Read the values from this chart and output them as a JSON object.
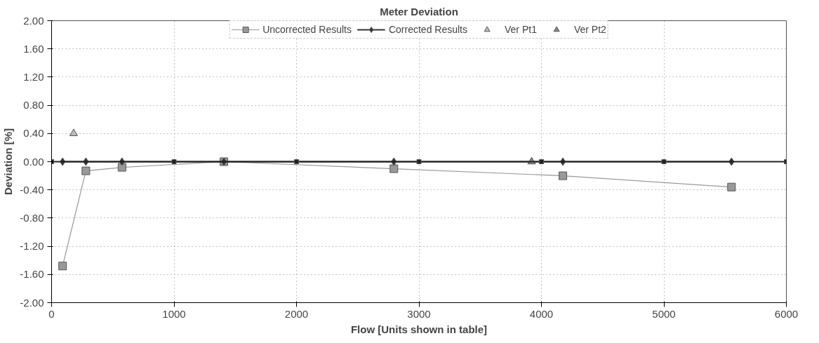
{
  "chart_data": {
    "type": "line",
    "title": "Meter Deviation",
    "xlabel": "Flow [Units shown in table]",
    "ylabel": "Deviation [%]",
    "xlim": [
      0,
      6000
    ],
    "xticks": [
      0,
      1000,
      2000,
      3000,
      4000,
      5000,
      6000
    ],
    "ylim": [
      -2.0,
      2.0
    ],
    "yticks": [
      {
        "value": -2.0,
        "label": "-2.00"
      },
      {
        "value": -1.6,
        "label": "-1.60"
      },
      {
        "value": -1.2,
        "label": "-1.20"
      },
      {
        "value": -0.8,
        "label": "-0.80"
      },
      {
        "value": -0.4,
        "label": "-0.40"
      },
      {
        "value": 0,
        "label": "0.00"
      },
      {
        "value": 0.4,
        "label": "0.40"
      },
      {
        "value": 0.8,
        "label": "0.80"
      },
      {
        "value": 1.2,
        "label": "1.20"
      },
      {
        "value": 1.6,
        "label": "1.60"
      },
      {
        "value": 2.0,
        "label": "2.00"
      }
    ],
    "grid": true,
    "legend": "top",
    "line_style": "solid",
    "series": [
      {
        "name": "Uncorrected Results",
        "color": "#999999",
        "marker": "square",
        "x": [
          90,
          280,
          575,
          1407,
          2795,
          4175,
          5552
        ],
        "values": [
          -1.48,
          -0.13,
          -0.08,
          0.0,
          -0.1,
          -0.2,
          -0.36
        ]
      },
      {
        "name": "Corrected Results",
        "color": "#333333",
        "marker": "diamond",
        "x": [
          90,
          280,
          575,
          1407,
          2795,
          4175,
          5552
        ],
        "values": [
          0.0,
          0.0,
          0.0,
          0.0,
          0.0,
          0.0,
          0.0
        ]
      },
      {
        "name": "Ver Pt1",
        "color": "#bbbbbb",
        "marker": "triangle",
        "x": [
          180
        ],
        "values": [
          0.4
        ]
      },
      {
        "name": "Ver Pt2",
        "color": "#888888",
        "marker": "triangle",
        "x": [
          3920
        ],
        "values": [
          0.0
        ]
      },
      {
        "color": "#222222",
        "marker": "square",
        "x": [
          0,
          1000,
          2000,
          3000,
          4000,
          5000,
          6000
        ],
        "values": [
          0,
          0,
          0,
          0,
          0,
          0,
          0
        ]
      }
    ]
  }
}
